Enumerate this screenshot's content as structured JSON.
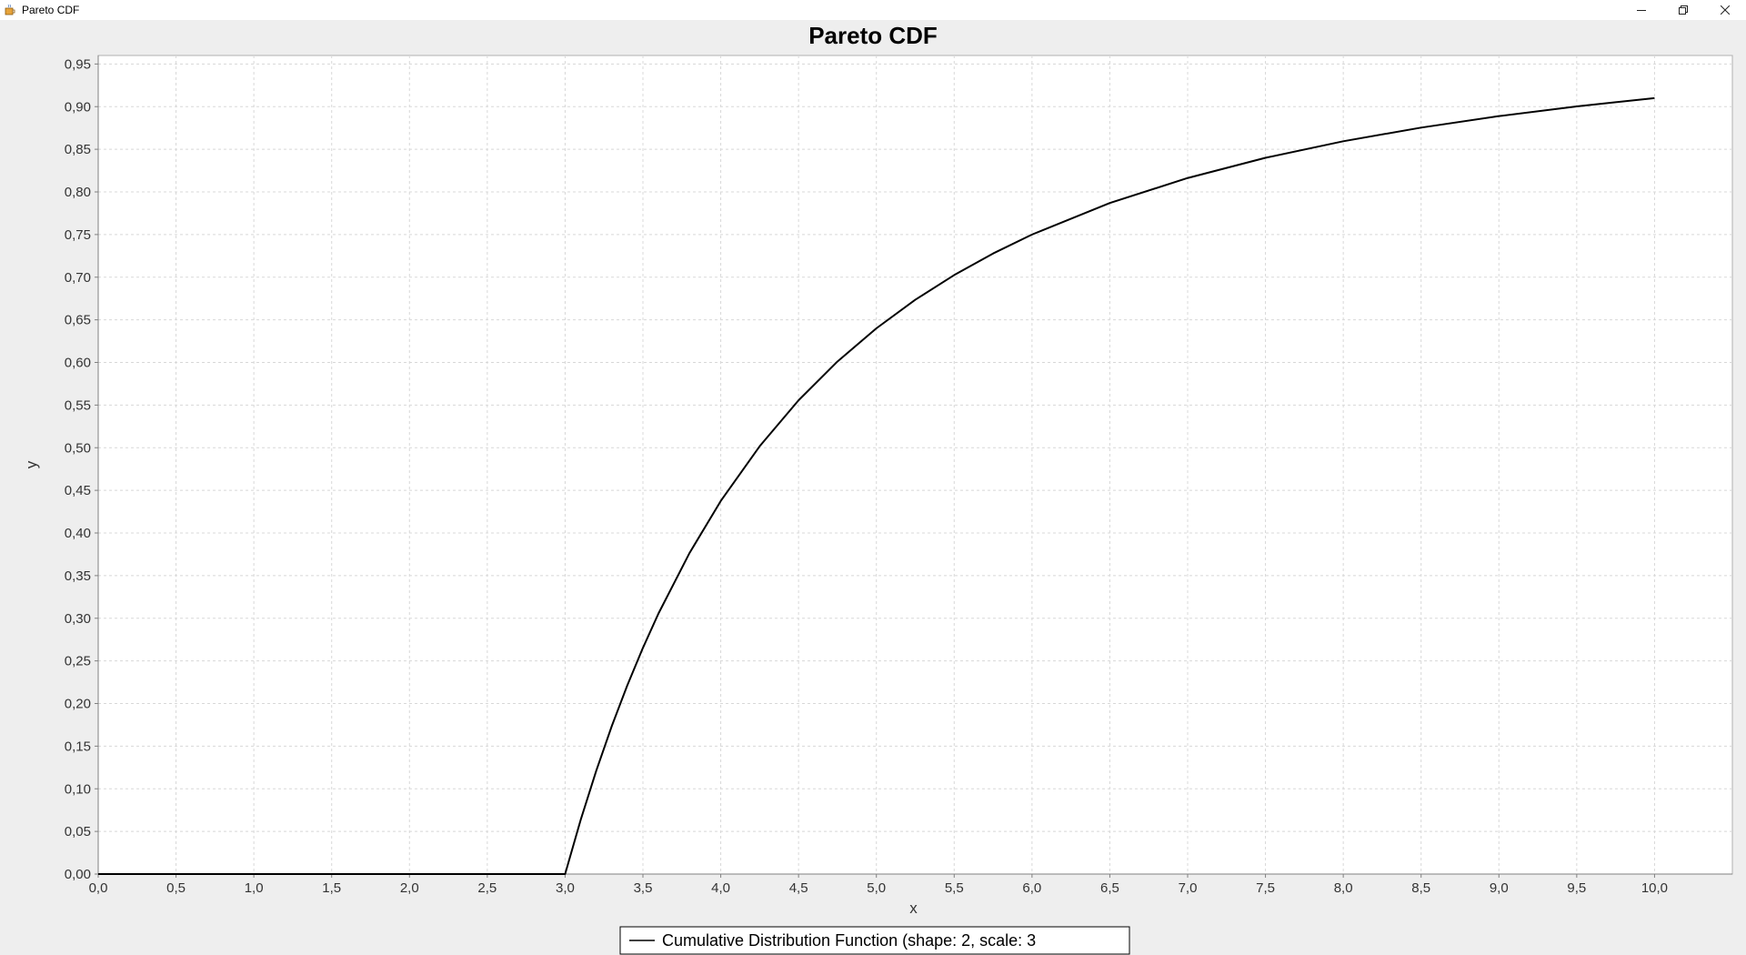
{
  "window": {
    "title": "Pareto CDF",
    "icons": {
      "app": "java-cup-icon",
      "minimize": "minimize-icon",
      "restore": "restore-icon",
      "close": "close-icon"
    }
  },
  "chart_data": {
    "type": "line",
    "title": "Pareto CDF",
    "xlabel": "x",
    "ylabel": "y",
    "xlim": [
      0,
      10.5
    ],
    "ylim": [
      0,
      0.96
    ],
    "grid": true,
    "legend": "bottom-center",
    "x_ticks": [
      "0,0",
      "0,5",
      "1,0",
      "1,5",
      "2,0",
      "2,5",
      "3,0",
      "3,5",
      "4,0",
      "4,5",
      "5,0",
      "5,5",
      "6,0",
      "6,5",
      "7,0",
      "7,5",
      "8,0",
      "8,5",
      "9,0",
      "9,5",
      "10,0"
    ],
    "y_ticks": [
      "0,00",
      "0,05",
      "0,10",
      "0,15",
      "0,20",
      "0,25",
      "0,30",
      "0,35",
      "0,40",
      "0,45",
      "0,50",
      "0,55",
      "0,60",
      "0,65",
      "0,70",
      "0,75",
      "0,80",
      "0,85",
      "0,90",
      "0,95"
    ],
    "series": [
      {
        "name": "Cumulative Distribution Function (shape: 2, scale: 3",
        "color": "#000000",
        "x": [
          0,
          3.0,
          3.1,
          3.2,
          3.3,
          3.4,
          3.5,
          3.6,
          3.8,
          4.0,
          4.25,
          4.5,
          4.75,
          5.0,
          5.25,
          5.5,
          5.75,
          6.0,
          6.5,
          7.0,
          7.5,
          8.0,
          8.5,
          9.0,
          9.5,
          10.0
        ],
        "y": [
          0,
          0,
          0.0635,
          0.1211,
          0.1736,
          0.2215,
          0.2653,
          0.3056,
          0.3767,
          0.4375,
          0.5017,
          0.5556,
          0.6011,
          0.64,
          0.6735,
          0.7025,
          0.7278,
          0.75,
          0.787,
          0.8163,
          0.84,
          0.8594,
          0.8754,
          0.8889,
          0.9003,
          0.91
        ]
      }
    ]
  }
}
